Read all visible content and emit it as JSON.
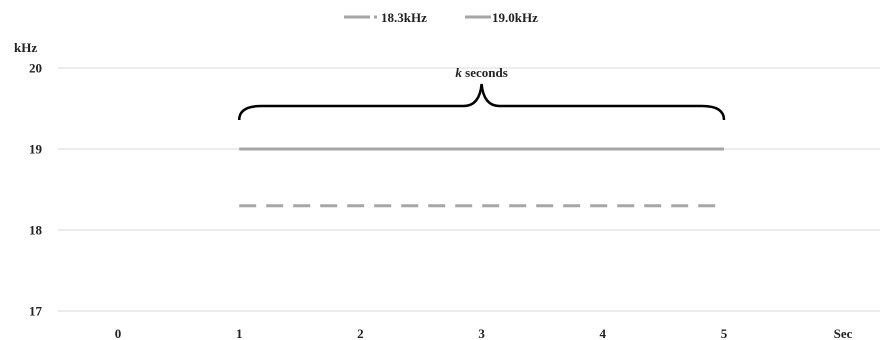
{
  "chart_data": {
    "type": "line",
    "title": "",
    "xlabel": "",
    "ylabel": "",
    "y_unit_label": "kHz",
    "x_unit_label": "Sec",
    "x_categories": [
      "0",
      "1",
      "2",
      "3",
      "4",
      "5"
    ],
    "y_ticks": [
      "17",
      "18",
      "19",
      "20"
    ],
    "ylim": [
      17,
      20
    ],
    "grid": true,
    "legend_position": "top-center",
    "series": [
      {
        "name": "18.3kHz",
        "style": "dashed",
        "color": "#a6a6a6",
        "x": [
          1,
          2,
          3,
          4,
          5
        ],
        "y": [
          18.3,
          18.3,
          18.3,
          18.3,
          18.3
        ]
      },
      {
        "name": "19.0kHz",
        "style": "solid",
        "color": "#a6a6a6",
        "x": [
          1,
          2,
          3,
          4,
          5
        ],
        "y": [
          19.0,
          19.0,
          19.0,
          19.0,
          19.0
        ]
      }
    ],
    "annotation": {
      "italic_part": "k",
      "text_part": " seconds",
      "from_x": 1,
      "to_x": 5
    },
    "colors": {
      "line": "#a6a6a6",
      "grid": "#d9d9d9",
      "text": "#222222",
      "brace": "#000000"
    }
  }
}
